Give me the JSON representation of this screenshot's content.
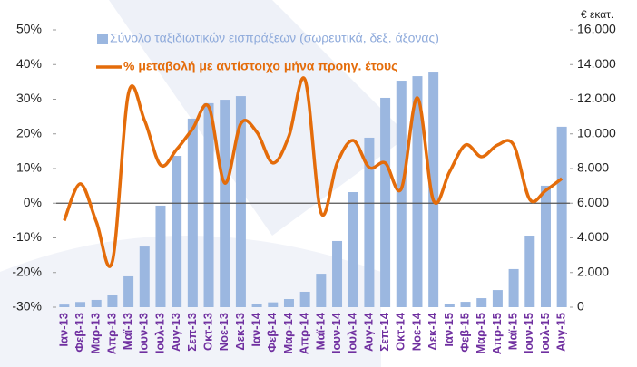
{
  "chart_data": {
    "type": "bar_line",
    "y2_title": "€ εκατ.",
    "categories": [
      "Ιαν-13",
      "Φεβ-13",
      "Μαρ-13",
      "Απρ-13",
      "Μαϊ-13",
      "Ιουν-13",
      "Ιουλ-13",
      "Αυγ-13",
      "Σεπ-13",
      "Οκτ-13",
      "Νοε-13",
      "Δεκ-13",
      "Ιαν-14",
      "Φεβ-14",
      "Μαρ-14",
      "Απρ-14",
      "Μαϊ-14",
      "Ιουν-14",
      "Ιουλ-14",
      "Αυγ-14",
      "Σεπ-14",
      "Οκτ-14",
      "Νοε-14",
      "Δεκ-14",
      "Ιαν-15",
      "Φεβ-15",
      "Μαρ-15",
      "Απρ-15",
      "Μαϊ-15",
      "Ιουν-15",
      "Ιουλ-15",
      "Αυγ-15"
    ],
    "series": [
      {
        "name": "Σύνολο ταξιδιωτικών εισπράξεων (σωρευτικά, δεξ. άξονας)",
        "kind": "bar",
        "axis": "y2",
        "color": "#9bb7e0",
        "values": [
          150,
          300,
          420,
          730,
          1780,
          3500,
          5860,
          8730,
          10880,
          11770,
          11970,
          12180,
          160,
          280,
          470,
          890,
          1930,
          3820,
          6640,
          9780,
          12080,
          13070,
          13330,
          13540,
          160,
          310,
          520,
          990,
          2200,
          4130,
          7010,
          10410
        ]
      },
      {
        "name": "% μεταβολή με αντίστοιχο μήνα προηγ. έτους",
        "kind": "line",
        "axis": "y",
        "color": "#e46c0a",
        "values": [
          -5,
          5.6,
          -5.4,
          -16.7,
          31.7,
          23.9,
          11,
          15.5,
          21.5,
          27.8,
          5.8,
          23,
          20.5,
          11.6,
          19.4,
          35.6,
          -2.8,
          11.6,
          18.1,
          10.3,
          11.6,
          4.2,
          30.4,
          0.8,
          9,
          16.8,
          13.4,
          16.8,
          16.8,
          1.1,
          3.7,
          7.1
        ]
      }
    ],
    "ylim": [
      -30,
      50
    ],
    "yticks": [
      {
        "value": -30,
        "label": "-30%"
      },
      {
        "value": -20,
        "label": "-20%"
      },
      {
        "value": -10,
        "label": "-10%"
      },
      {
        "value": 0,
        "label": "0%"
      },
      {
        "value": 10,
        "label": "10%"
      },
      {
        "value": 20,
        "label": "20%"
      },
      {
        "value": 30,
        "label": "30%"
      },
      {
        "value": 40,
        "label": "40%"
      },
      {
        "value": 50,
        "label": "50%"
      }
    ],
    "y2lim": [
      0,
      16000
    ],
    "y2ticks": [
      0,
      {
        "value": 2000,
        "label": "2.000"
      },
      {
        "value": 4000,
        "label": "4.000"
      },
      {
        "value": 6000,
        "label": "6.000"
      },
      {
        "value": 8000,
        "label": "8.000"
      },
      {
        "value": 10000,
        "label": "10.000"
      },
      {
        "value": 12000,
        "label": "12.000"
      },
      {
        "value": 14000,
        "label": "14.000"
      },
      {
        "value": 16000,
        "label": "16.000"
      }
    ],
    "zero_line": true,
    "category_color": "#7030a0"
  }
}
